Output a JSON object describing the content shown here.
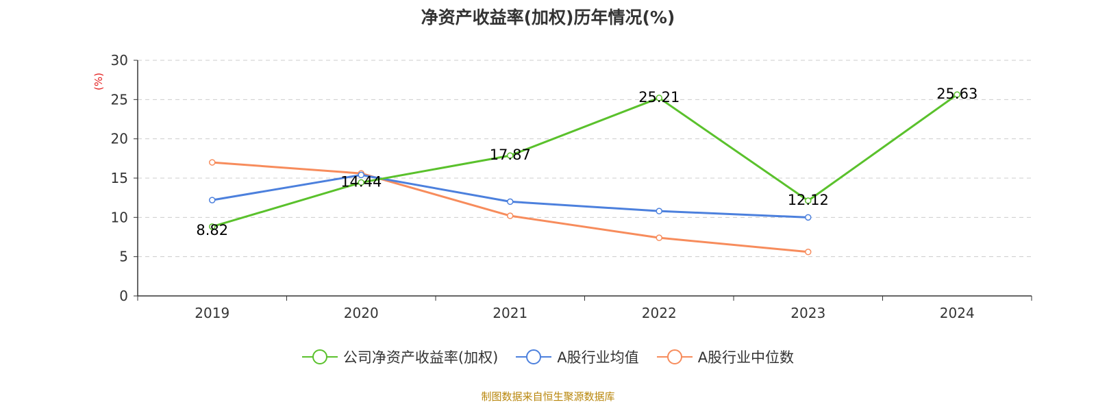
{
  "chart_data": {
    "type": "line",
    "title": "净资产收益率(加权)历年情况(%)",
    "ylabel": "(%)",
    "xlabel": "",
    "categories": [
      "2019",
      "2020",
      "2021",
      "2022",
      "2023",
      "2024"
    ],
    "ylim": [
      0,
      30
    ],
    "yticks": [
      0,
      5,
      10,
      15,
      20,
      25,
      30
    ],
    "grid": true,
    "legend_position": "bottom",
    "series": [
      {
        "name": "公司净资产收益率(加权)",
        "color": "#5ac12c",
        "values": [
          8.82,
          14.44,
          17.87,
          25.21,
          12.12,
          25.63
        ],
        "labels": [
          "8.82",
          "14.44",
          "17.87",
          "25.21",
          "12.12",
          "25.63"
        ]
      },
      {
        "name": "A股行业均值",
        "color": "#4c80dd",
        "values": [
          12.2,
          15.4,
          12.0,
          10.8,
          10.0,
          null
        ]
      },
      {
        "name": "A股行业中位数",
        "color": "#f78c5c",
        "values": [
          17.0,
          15.6,
          10.2,
          7.4,
          5.6,
          null
        ]
      }
    ]
  },
  "source_text": "制图数据来自恒生聚源数据库",
  "colors": {
    "unit_label": "#e31d1d",
    "source_text": "#b8860b",
    "axis": "#333333",
    "grid": "#cccccc"
  }
}
